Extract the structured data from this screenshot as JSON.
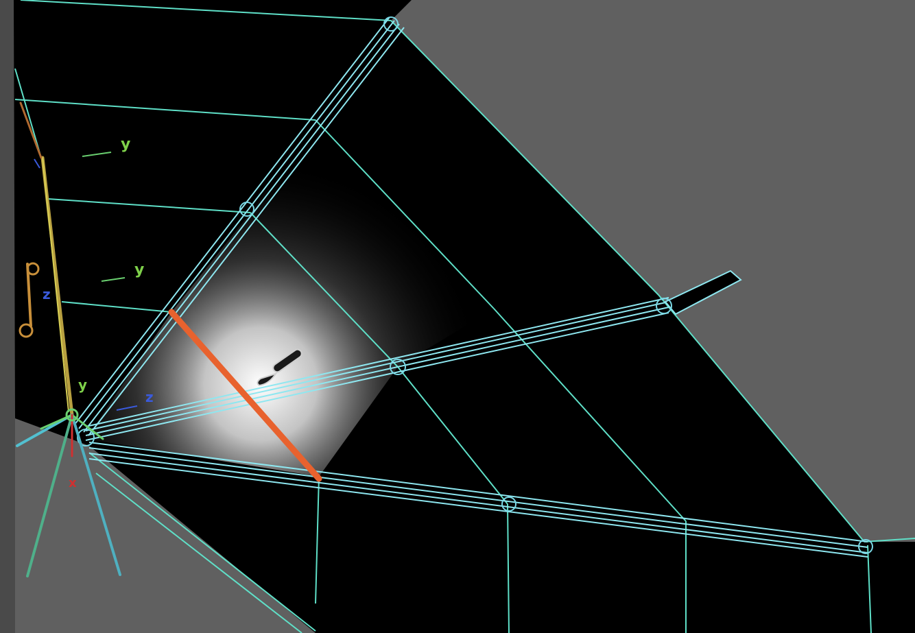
{
  "viewport": {
    "background": "#606060",
    "mesh_fill": "#000000",
    "wire_color": "#5fe0c8",
    "edge_loop_color": "#8ee7f0",
    "selected_edge_color": "#e8622e"
  },
  "axis_labels": {
    "y1": "y",
    "y2": "y",
    "z1": "z",
    "y3": "y",
    "z2": "z",
    "x1": "x"
  },
  "cursor": {
    "icon": "brush-cursor-icon"
  }
}
